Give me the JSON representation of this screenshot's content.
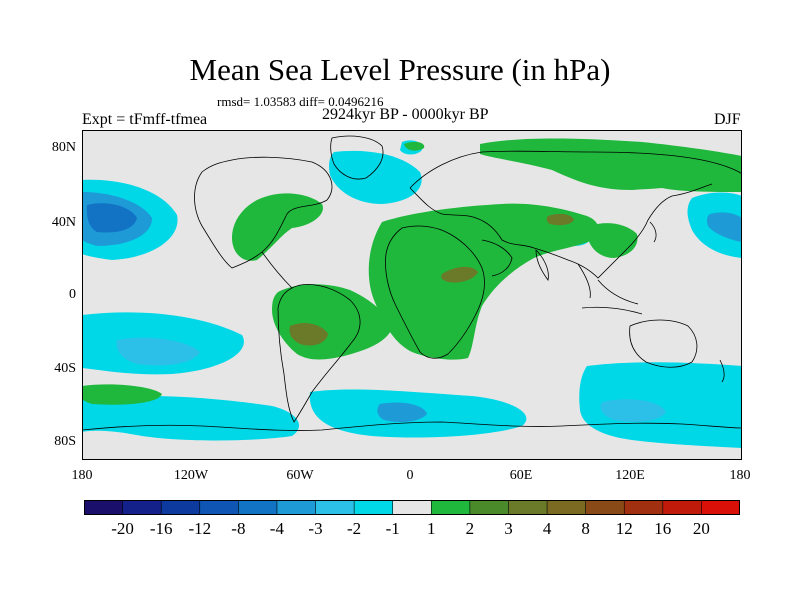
{
  "title": "Mean Sea Level Pressure (in hPa)",
  "stats": "rmsd= 1.03583  diff= 0.0496216",
  "experiment": "Expt = tFmff-tfmea",
  "period": "2924kyr BP - 0000kyr BP",
  "season": "DJF",
  "lat_labels": [
    "80N",
    "40N",
    "0",
    "40S",
    "80S"
  ],
  "lon_labels": [
    "180",
    "120W",
    "60W",
    "0",
    "60E",
    "120E",
    "180"
  ],
  "colors": {
    "neutral": "#e6e6e6",
    "neg_1": "#00d8e8",
    "neg_2": "#2cc0e8",
    "neg_3": "#1e9ad6",
    "neg_4": "#1272c4",
    "pos_1": "#1fb83c",
    "pos_2": "#4a8a2a",
    "pos_3": "#6b7a28",
    "coast": "#000000"
  },
  "colorbar": {
    "colors": [
      "#1a0f6b",
      "#14218a",
      "#0c3a9e",
      "#0e55b4",
      "#1272c4",
      "#1e9ad6",
      "#2cc0e8",
      "#00d8e8",
      "#e6e6e6",
      "#1fb83c",
      "#4a8a2a",
      "#6b7a28",
      "#7a6a22",
      "#8a4a18",
      "#a03010",
      "#c01a0a",
      "#d81008"
    ],
    "labels": [
      "-20",
      "-16",
      "-12",
      "-8",
      "-4",
      "-3",
      "-2",
      "-1",
      "1",
      "2",
      "3",
      "4",
      "8",
      "12",
      "16",
      "20"
    ]
  }
}
